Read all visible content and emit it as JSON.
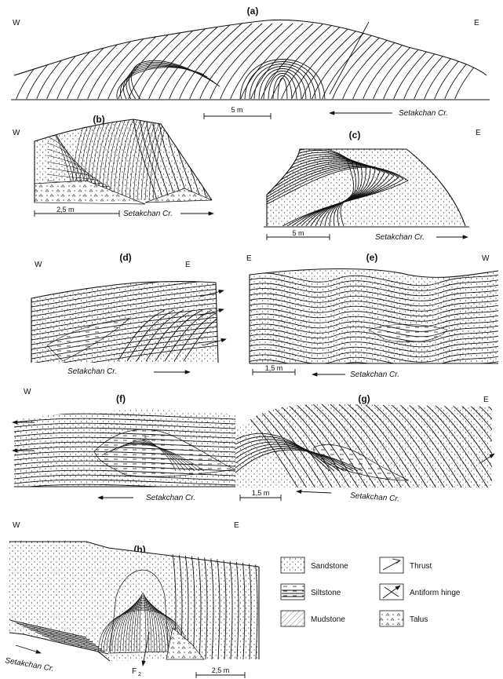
{
  "panels": {
    "a": {
      "label": "(a)",
      "west": "W",
      "east": "E",
      "creek": "Setakchan Cr.",
      "scale": "5 m"
    },
    "b": {
      "label": "(b)",
      "west": "W",
      "creek": "Setakchan Cr.",
      "scale": "2,5 m"
    },
    "c": {
      "label": "(c)",
      "east": "E",
      "creek": "Setakchan Cr.",
      "scale": "5 m"
    },
    "d": {
      "label": "(d)",
      "west": "W",
      "east": "E",
      "creek": "Setakchan Cr."
    },
    "e": {
      "label": "(e)",
      "east": "E",
      "west": "W",
      "creek": "Setakchan Cr.",
      "scale": "1,5 m"
    },
    "f": {
      "label": "(f)",
      "west": "W",
      "creek": "Setakchan Cr."
    },
    "g": {
      "label": "(g)",
      "east": "E",
      "creek": "Setakchan Cr.",
      "scale": "1,5 m"
    },
    "h": {
      "label": "(h)",
      "west": "W",
      "east": "E",
      "creek": "Setakchan Cr.",
      "scale": "2,5 m",
      "fold_label": "F",
      "fold_sub": "2"
    }
  },
  "legend": {
    "sandstone": "Sandstone",
    "siltstone": "Siltstone",
    "mudstone": "Mudstone",
    "thrust": "Thrust",
    "antiform": "Antiform hinge",
    "talus": "Talus"
  }
}
